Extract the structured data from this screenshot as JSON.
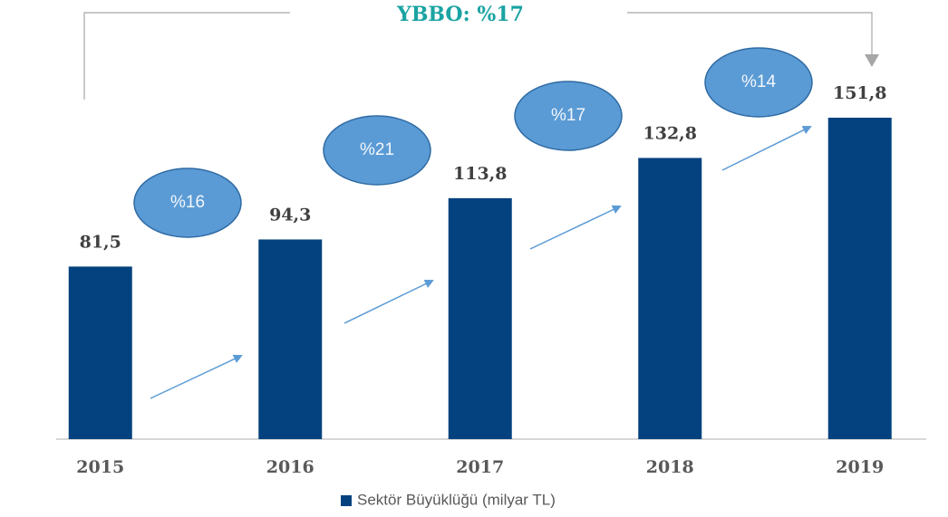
{
  "chart_data": {
    "type": "bar",
    "categories": [
      "2015",
      "2016",
      "2017",
      "2018",
      "2019"
    ],
    "series": [
      {
        "name": "Sektör Büyüklüğü (milyar TL)",
        "color": "#03427f",
        "values": [
          81.5,
          94.3,
          113.8,
          132.8,
          151.8
        ],
        "value_labels": [
          "81,5",
          "94,3",
          "113,8",
          "132,8",
          "151,8"
        ]
      }
    ],
    "growth_labels": [
      "%16",
      "%21",
      "%17",
      "%14"
    ],
    "cagr_label": "YBBO: %17",
    "legend": "bottom"
  }
}
